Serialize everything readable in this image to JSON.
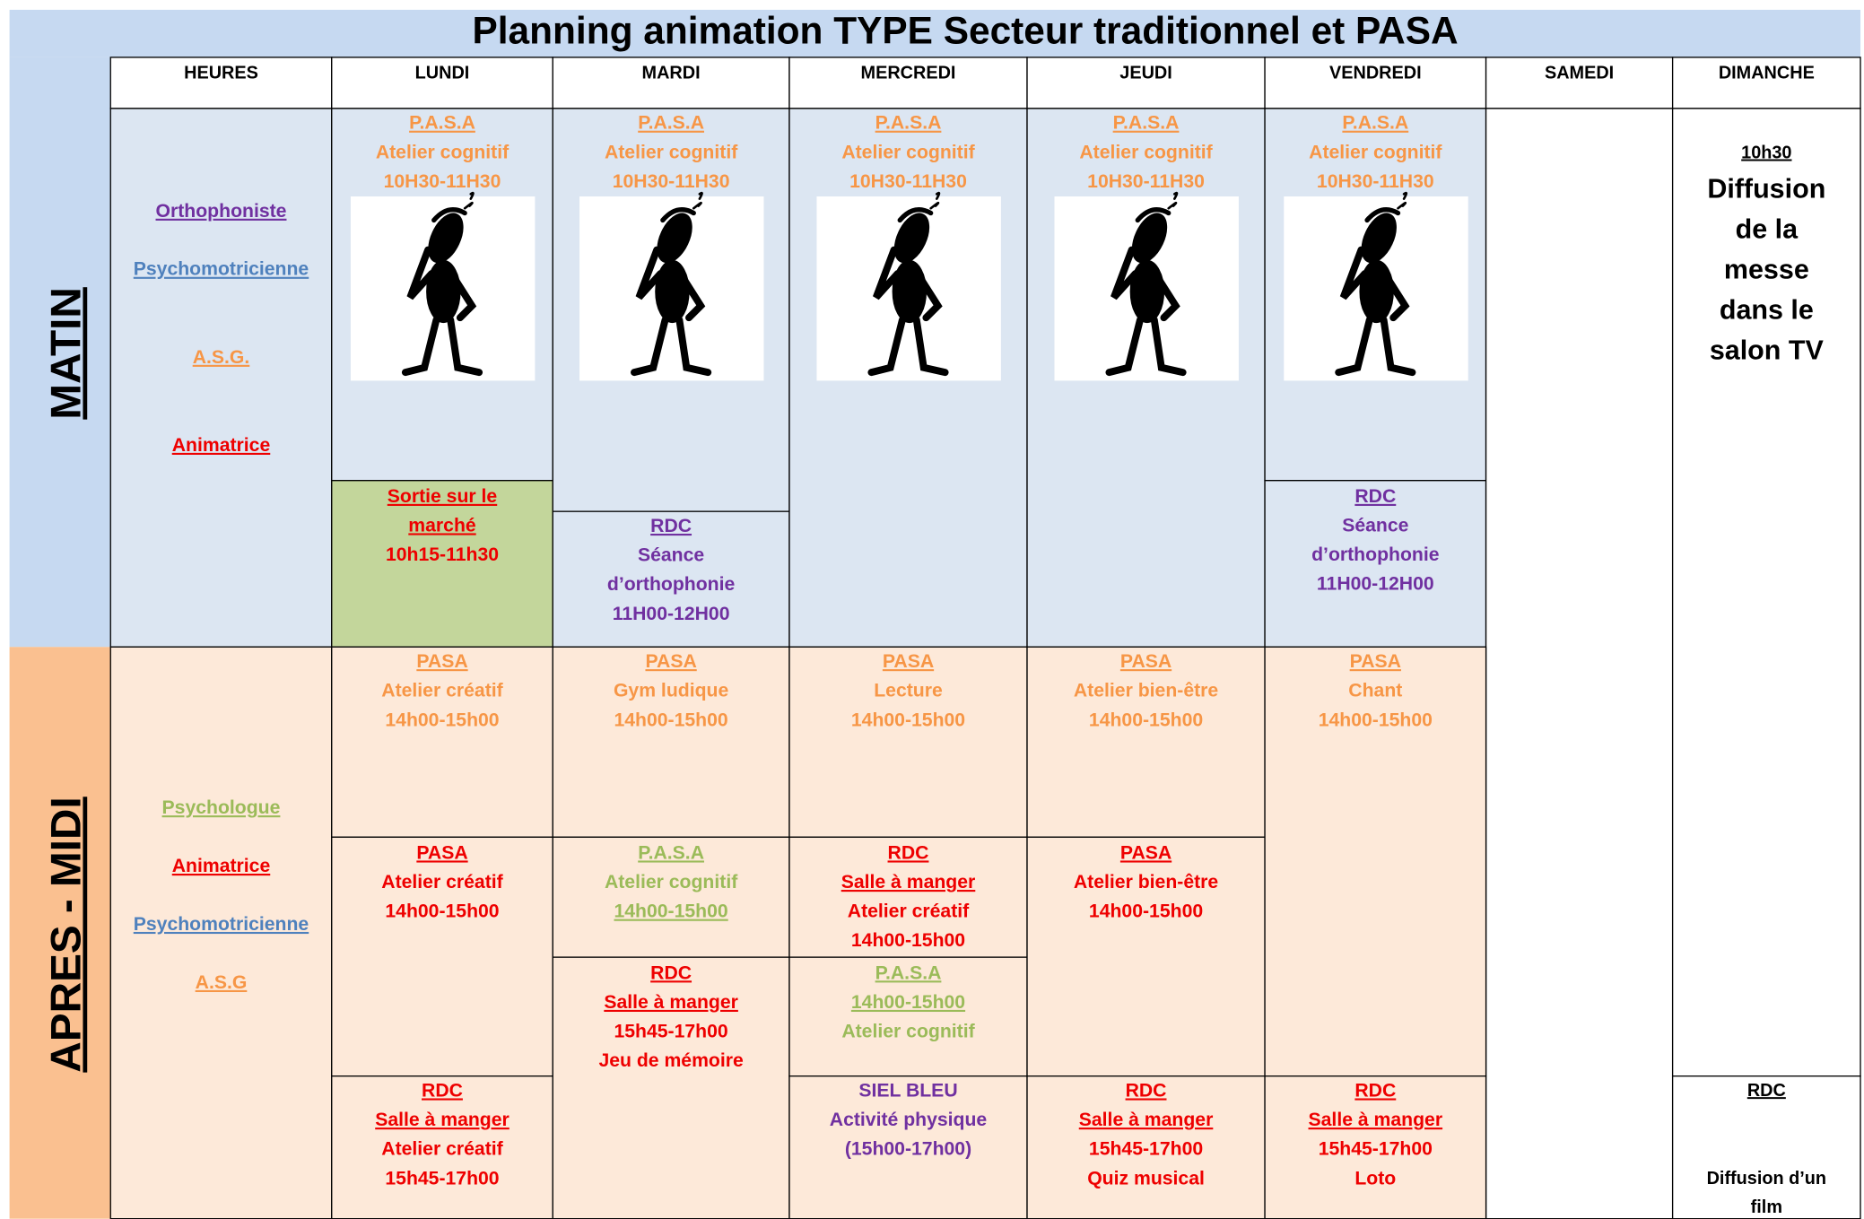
{
  "title": "Planning animation TYPE Secteur traditionnel et PASA",
  "sections": [
    "MATIN",
    "APRES - MIDI"
  ],
  "headers": [
    "HEURES",
    "LUNDI",
    "MARDI",
    "MERCREDI",
    "JEUDI",
    "VENDREDI",
    "SAMEDI",
    "DIMANCHE"
  ],
  "cells": [
    {
      "lines": [
        "Orthophoniste",
        "Psychomotricienne",
        "A.S.G.",
        "Animatrice"
      ]
    },
    {
      "lines": [
        "P.A.S.A",
        "Atelier cognitif",
        "10H30-11H30"
      ]
    },
    {
      "lines": [
        "Sortie sur le",
        "marché",
        "10h15-11h30"
      ]
    },
    {
      "lines": [
        "P.A.S.A",
        "Atelier cognitif",
        "10H30-11H30"
      ]
    },
    {
      "lines": [
        "RDC",
        "Séance",
        "d’orthophonie",
        "11H00-12H00"
      ]
    },
    {
      "lines": [
        "P.A.S.A",
        "Atelier cognitif",
        "10H30-11H30"
      ]
    },
    {
      "lines": [
        "P.A.S.A",
        "Atelier cognitif",
        "10H30-11H30"
      ]
    },
    {
      "lines": [
        "P.A.S.A",
        "Atelier cognitif",
        "10H30-11H30"
      ]
    },
    {
      "lines": [
        "RDC",
        "Séance",
        "d’orthophonie",
        "11H00-12H00"
      ]
    },
    {
      "lines": []
    },
    {
      "lines": [
        "10h30",
        "Diffusion",
        "de la",
        "messe",
        "dans le",
        "salon TV"
      ]
    },
    {
      "lines": [
        "RDC",
        "Diffusion d’un",
        "film"
      ]
    },
    {
      "lines": [
        "Psychologue",
        "Animatrice",
        "Psychomotricienne",
        "A.S.G"
      ]
    },
    {
      "lines": [
        "PASA",
        "Atelier créatif",
        "14h00-15h00"
      ]
    },
    {
      "lines": [
        "PASA",
        "Atelier créatif",
        "14h00-15h00"
      ]
    },
    {
      "lines": [
        "RDC",
        "Salle à manger",
        "Atelier créatif",
        "15h45-17h00"
      ]
    },
    {
      "lines": [
        "PASA",
        "Gym ludique",
        "14h00-15h00"
      ]
    },
    {
      "lines": [
        "P.A.S.A",
        "Atelier cognitif",
        "14h00-15h00"
      ]
    },
    {
      "lines": [
        "RDC",
        "Salle à manger",
        "15h45-17h00",
        "Jeu de mémoire"
      ]
    },
    {
      "lines": [
        "PASA",
        "Lecture",
        "14h00-15h00"
      ]
    },
    {
      "lines": [
        "RDC",
        "Salle à manger",
        "Atelier créatif",
        "14h00-15h00"
      ]
    },
    {
      "lines": [
        "P.A.S.A",
        "14h00-15h00",
        "Atelier cognitif"
      ]
    },
    {
      "lines": [
        "SIEL BLEU",
        "Activité physique",
        "(15h00-17h00)"
      ]
    },
    {
      "lines": [
        "PASA",
        "Atelier bien-être",
        "14h00-15h00"
      ]
    },
    {
      "lines": [
        "PASA",
        "Atelier bien-être",
        "14h00-15h00"
      ]
    },
    {
      "lines": [
        "RDC",
        "Salle à manger",
        "15h45-17h00",
        "Quiz musical"
      ]
    },
    {
      "lines": [
        "PASA",
        "Chant",
        "14h00-15h00"
      ]
    },
    {
      "lines": [
        "RDC",
        "Salle à manger",
        "15h45-17h00",
        "Loto"
      ]
    }
  ]
}
